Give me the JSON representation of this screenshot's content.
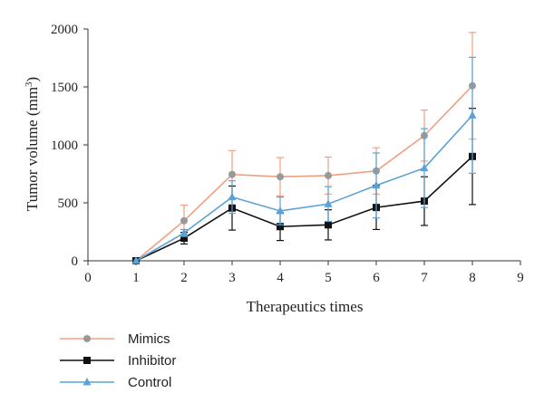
{
  "chart_data": {
    "type": "line",
    "xlabel": "Therapeutics times",
    "ylabel": "Tumor volume (mm",
    "ylabel_sup": "3",
    "ylabel_close": ")",
    "xlim": [
      0,
      9
    ],
    "ylim": [
      0,
      2000
    ],
    "x_ticks": [
      0,
      1,
      2,
      3,
      4,
      5,
      6,
      7,
      8,
      9
    ],
    "y_ticks": [
      0,
      500,
      1000,
      1500,
      2000
    ],
    "x_tick_labels": [
      "0",
      "1",
      "2",
      "3",
      "4",
      "5",
      "6",
      "7",
      "8",
      "9"
    ],
    "y_tick_labels": [
      "0",
      "500",
      "1000",
      "1500",
      "2000"
    ],
    "grid": false,
    "legend_position": "bottom-left",
    "x": [
      1,
      2,
      3,
      4,
      5,
      6,
      7,
      8
    ],
    "series": [
      {
        "name": "Mimics",
        "color": "#f0a080",
        "marker_color": "#999999",
        "marker": "circle",
        "values": [
          0,
          345,
          745,
          725,
          735,
          775,
          1080,
          1510
        ],
        "errors": [
          0,
          135,
          205,
          165,
          160,
          200,
          220,
          460
        ]
      },
      {
        "name": "Inhibitor",
        "color": "#111111",
        "marker_color": "#111111",
        "marker": "square",
        "values": [
          0,
          195,
          455,
          295,
          310,
          460,
          515,
          900
        ],
        "errors": [
          0,
          50,
          190,
          120,
          130,
          190,
          210,
          415
        ]
      },
      {
        "name": "Control",
        "color": "#5ba3d6",
        "marker_color": "#5ba3d6",
        "marker": "triangle",
        "values": [
          0,
          240,
          550,
          430,
          490,
          650,
          800,
          1255
        ],
        "errors": [
          0,
          30,
          140,
          120,
          150,
          280,
          340,
          500
        ]
      }
    ]
  }
}
